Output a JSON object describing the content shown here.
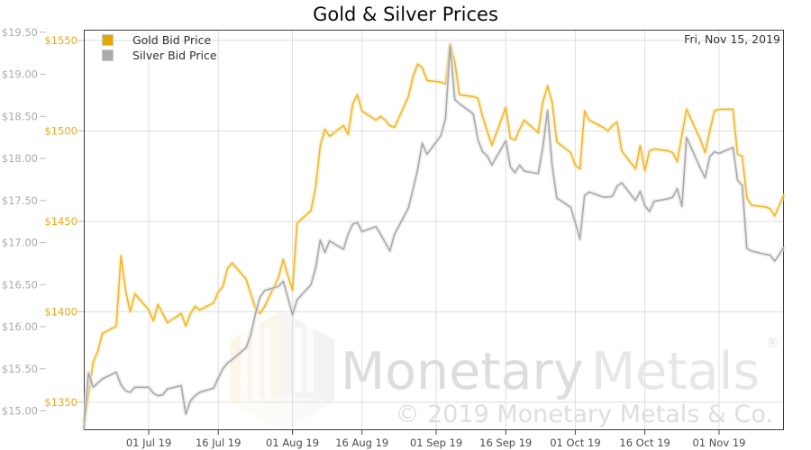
{
  "title": "Gold & Silver Prices",
  "annotation_date": "Fri, Nov 15, 2019",
  "legend": {
    "items": [
      {
        "label": "Gold Bid Price",
        "swatch_color": "#E5A800"
      },
      {
        "label": "Silver Bid Price",
        "swatch_color": "#ABABAB"
      }
    ]
  },
  "watermark": {
    "brand_first": "Monetary",
    "brand_second": "Metals",
    "registered_mark": "®",
    "copyright_line": "© 2019 Monetary Metals & Co."
  },
  "colors": {
    "gold_line": "#F2B62B",
    "gold_glow": "#FAE7B3",
    "silver_line": "#A9A9A9",
    "silver_glow": "#E2E2E2",
    "grid": "#DEDEDE",
    "plot_border": "#3C3C3C",
    "gold_tick_label": "#EDA71C",
    "silver_tick_label": "#ABABAB",
    "x_tick_label": "#4D4D4D",
    "hex_left": "#FBF2D7",
    "hex_right": "#EFEFEF"
  },
  "chart_data": {
    "type": "line",
    "title": "Gold & Silver Prices",
    "legend_position": "top-left",
    "grid": true,
    "x_axis": {
      "start_date": "2019-06-17",
      "end_date": "2019-11-15",
      "span_days": 151,
      "ticks": [
        {
          "label": "01 Jul 19",
          "day": 14
        },
        {
          "label": "16 Jul 19",
          "day": 29
        },
        {
          "label": "01 Aug 19",
          "day": 45
        },
        {
          "label": "16 Aug 19",
          "day": 60
        },
        {
          "label": "01 Sep 19",
          "day": 76
        },
        {
          "label": "16 Sep 19",
          "day": 91
        },
        {
          "label": "01 Oct 19",
          "day": 106
        },
        {
          "label": "16 Oct 19",
          "day": 121
        },
        {
          "label": "01 Nov 19",
          "day": 137
        }
      ]
    },
    "gold_axis": {
      "side": "left-inner",
      "tick_labels": [
        "$1550",
        "$1500",
        "$1450",
        "$1400",
        "$1350"
      ],
      "tick_values": [
        1550,
        1500,
        1450,
        1400,
        1350
      ],
      "range": [
        1334.5,
        1556
      ]
    },
    "silver_axis": {
      "side": "left-outer",
      "tick_labels": [
        "$19.50",
        "$19.00",
        "$18.50",
        "$18.00",
        "$17.50",
        "$17.00",
        "$16.50",
        "$16.00",
        "$15.50",
        "$15.00"
      ],
      "tick_values": [
        19.5,
        19.0,
        18.5,
        18.0,
        17.5,
        17.0,
        16.5,
        16.0,
        15.5,
        15.0
      ],
      "range": [
        14.77,
        19.53
      ]
    },
    "dates": [
      "2019-06-17",
      "2019-06-18",
      "2019-06-19",
      "2019-06-20",
      "2019-06-21",
      "2019-06-24",
      "2019-06-25",
      "2019-06-26",
      "2019-06-27",
      "2019-06-28",
      "2019-07-01",
      "2019-07-02",
      "2019-07-03",
      "2019-07-04",
      "2019-07-05",
      "2019-07-08",
      "2019-07-09",
      "2019-07-10",
      "2019-07-11",
      "2019-07-12",
      "2019-07-15",
      "2019-07-16",
      "2019-07-17",
      "2019-07-18",
      "2019-07-19",
      "2019-07-22",
      "2019-07-23",
      "2019-07-24",
      "2019-07-25",
      "2019-07-26",
      "2019-07-29",
      "2019-07-30",
      "2019-07-31",
      "2019-08-01",
      "2019-08-02",
      "2019-08-05",
      "2019-08-06",
      "2019-08-07",
      "2019-08-08",
      "2019-08-09",
      "2019-08-12",
      "2019-08-13",
      "2019-08-14",
      "2019-08-15",
      "2019-08-16",
      "2019-08-19",
      "2019-08-20",
      "2019-08-21",
      "2019-08-22",
      "2019-08-23",
      "2019-08-26",
      "2019-08-27",
      "2019-08-28",
      "2019-08-29",
      "2019-08-30",
      "2019-09-02",
      "2019-09-03",
      "2019-09-04",
      "2019-09-05",
      "2019-09-06",
      "2019-09-09",
      "2019-09-10",
      "2019-09-11",
      "2019-09-12",
      "2019-09-13",
      "2019-09-16",
      "2019-09-17",
      "2019-09-18",
      "2019-09-19",
      "2019-09-20",
      "2019-09-23",
      "2019-09-24",
      "2019-09-25",
      "2019-09-26",
      "2019-09-27",
      "2019-09-30",
      "2019-10-01",
      "2019-10-02",
      "2019-10-03",
      "2019-10-04",
      "2019-10-07",
      "2019-10-08",
      "2019-10-09",
      "2019-10-10",
      "2019-10-11",
      "2019-10-14",
      "2019-10-15",
      "2019-10-16",
      "2019-10-17",
      "2019-10-18",
      "2019-10-21",
      "2019-10-22",
      "2019-10-23",
      "2019-10-24",
      "2019-10-25",
      "2019-10-28",
      "2019-10-29",
      "2019-10-30",
      "2019-10-31",
      "2019-11-01",
      "2019-11-04",
      "2019-11-05",
      "2019-11-06",
      "2019-11-07",
      "2019-11-08",
      "2019-11-11",
      "2019-11-12",
      "2019-11-13",
      "2019-11-14",
      "2019-11-15"
    ],
    "day_offsets": [
      0,
      1,
      2,
      3,
      4,
      7,
      8,
      9,
      10,
      11,
      14,
      15,
      16,
      17,
      18,
      21,
      22,
      23,
      24,
      25,
      28,
      29,
      30,
      31,
      32,
      35,
      36,
      37,
      38,
      39,
      42,
      43,
      44,
      45,
      46,
      49,
      50,
      51,
      52,
      53,
      56,
      57,
      58,
      59,
      60,
      63,
      64,
      65,
      66,
      67,
      70,
      71,
      72,
      73,
      74,
      77,
      78,
      79,
      80,
      81,
      84,
      85,
      86,
      87,
      88,
      91,
      92,
      93,
      94,
      95,
      98,
      99,
      100,
      101,
      102,
      105,
      106,
      107,
      108,
      109,
      112,
      113,
      114,
      115,
      116,
      119,
      120,
      121,
      122,
      123,
      126,
      127,
      128,
      129,
      130,
      133,
      134,
      135,
      136,
      137,
      140,
      141,
      142,
      143,
      144,
      147,
      148,
      149,
      150,
      151
    ],
    "series": [
      {
        "name": "Gold Bid Price",
        "axis": "gold",
        "color": "#F2B62B",
        "values": [
          1339,
          1354,
          1372,
          1378,
          1388,
          1392,
          1431,
          1412,
          1400,
          1410,
          1401,
          1395,
          1404,
          1399,
          1394,
          1399,
          1392,
          1399,
          1403,
          1401,
          1405,
          1411,
          1414,
          1424,
          1427,
          1418,
          1410,
          1402,
          1399,
          1403,
          1419,
          1429,
          1420,
          1412,
          1449,
          1456,
          1469,
          1492,
          1501,
          1497,
          1503,
          1498,
          1515,
          1520,
          1511,
          1506,
          1508,
          1506,
          1503,
          1502,
          1519,
          1530,
          1537,
          1535,
          1528,
          1527,
          1526,
          1548,
          1538,
          1520,
          1519,
          1518,
          1508,
          1500,
          1492,
          1513,
          1496,
          1495,
          1501,
          1506,
          1499,
          1516,
          1525,
          1516,
          1494,
          1488,
          1481,
          1479,
          1511,
          1506,
          1502,
          1500,
          1503,
          1505,
          1489,
          1479,
          1492,
          1478,
          1489,
          1490,
          1489,
          1488,
          1483,
          1498,
          1512,
          1495,
          1488,
          1500,
          1511,
          1512,
          1512,
          1487,
          1486,
          1463,
          1459,
          1458,
          1457,
          1453,
          1459,
          1465
        ]
      },
      {
        "name": "Silver Bid Price",
        "axis": "silver",
        "color": "#A9A9A9",
        "values": [
          14.78,
          15.45,
          15.28,
          15.33,
          15.38,
          15.46,
          15.31,
          15.24,
          15.22,
          15.28,
          15.28,
          15.21,
          15.18,
          15.19,
          15.26,
          15.3,
          14.96,
          15.12,
          15.18,
          15.22,
          15.27,
          15.39,
          15.5,
          15.57,
          15.61,
          15.75,
          15.9,
          16.15,
          16.35,
          16.43,
          16.48,
          16.54,
          16.35,
          16.14,
          16.32,
          16.5,
          16.7,
          17.03,
          16.88,
          17.02,
          16.92,
          17.1,
          17.22,
          17.24,
          17.13,
          17.19,
          17.1,
          17.0,
          16.9,
          17.1,
          17.41,
          17.63,
          17.87,
          18.18,
          18.05,
          18.27,
          18.47,
          19.34,
          18.7,
          18.65,
          18.53,
          18.22,
          18.08,
          18.03,
          17.92,
          18.21,
          17.9,
          17.83,
          17.92,
          17.85,
          17.82,
          18.13,
          18.57,
          17.92,
          17.53,
          17.42,
          17.24,
          17.04,
          17.56,
          17.6,
          17.54,
          17.54,
          17.55,
          17.67,
          17.71,
          17.5,
          17.61,
          17.44,
          17.37,
          17.49,
          17.52,
          17.54,
          17.64,
          17.43,
          18.25,
          17.88,
          17.77,
          18.02,
          18.08,
          18.06,
          18.13,
          17.74,
          17.68,
          16.93,
          16.9,
          16.86,
          16.85,
          16.78,
          16.86,
          16.95
        ]
      }
    ]
  }
}
